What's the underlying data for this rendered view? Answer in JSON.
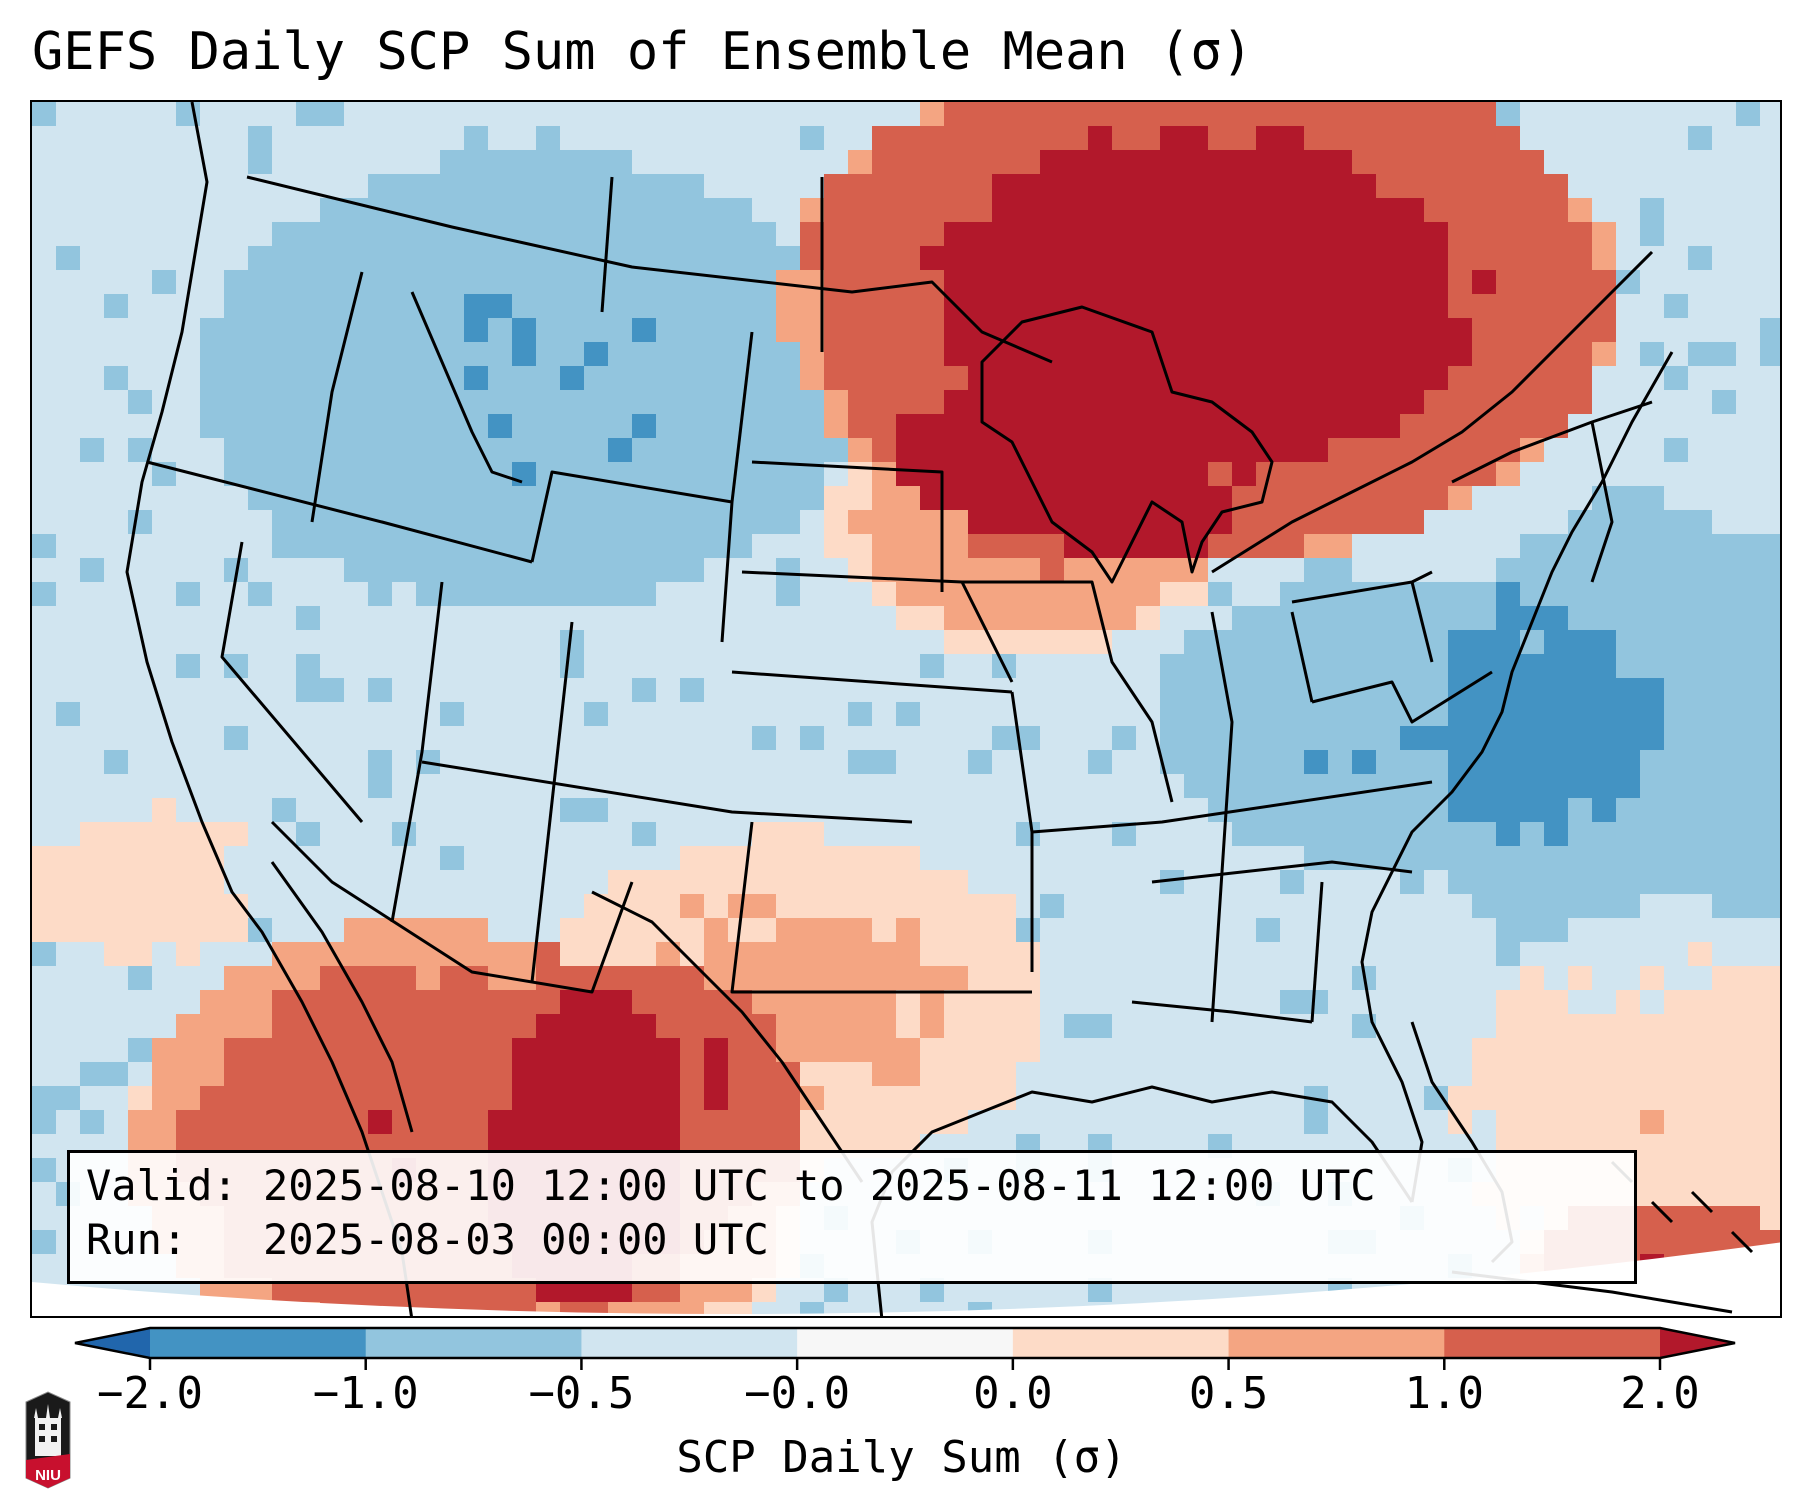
{
  "title": "GEFS Daily SCP Sum of Ensemble Mean (σ)",
  "info_box": {
    "valid": "Valid: 2025-08-10 12:00 UTC to 2025-08-11 12:00 UTC",
    "run": "Run:   2025-08-03 00:00 UTC"
  },
  "colorbar": {
    "label": "SCP Daily Sum (σ)",
    "ticks": [
      "−2.0",
      "−1.0",
      "−0.5",
      "−0.0",
      "0.0",
      "0.5",
      "1.0",
      "2.0"
    ],
    "bins": [
      {
        "range": "< -2.0",
        "color": "#2166ac"
      },
      {
        "range": "-2.0 to -1.0",
        "color": "#4393c3"
      },
      {
        "range": "-1.0 to -0.5",
        "color": "#92c5de"
      },
      {
        "range": "-0.5 to -0.0",
        "color": "#d1e5f0"
      },
      {
        "range": "-0.0 to 0.0",
        "color": "#f7f7f7"
      },
      {
        "range": "0.0 to 0.5",
        "color": "#fddbc7"
      },
      {
        "range": "0.5 to 1.0",
        "color": "#f4a582"
      },
      {
        "range": "1.0 to 2.0",
        "color": "#d6604d"
      },
      {
        "range": "> 2.0",
        "color": "#b2182b"
      }
    ],
    "extend": "both"
  },
  "logo": {
    "text": "NIU",
    "name": "Northern Illinois University"
  },
  "map": {
    "projection": "Lambert Conformal (CONUS)",
    "field": "SCP daily sum standardized anomaly",
    "regions_summary": [
      {
        "region": "Upper Midwest / Great Lakes / Ontario-Quebec",
        "category": "> 2.0"
      },
      {
        "region": "Southern Plains / Texas / New Mexico",
        "category": "0.0 to 1.0"
      },
      {
        "region": "Northwest Mexico / Sierra Madre",
        "category": "1.0 to > 2.0"
      },
      {
        "region": "Northern Rockies / Northern Plains",
        "category": "-1.0 to -0.5"
      },
      {
        "region": "Ohio Valley / Mid-Atlantic / Western Atlantic",
        "category": "-1.0 to -0.5"
      },
      {
        "region": "Remainder of CONUS / Gulf of Mexico",
        "category": "-0.5 to -0.0"
      }
    ]
  }
}
